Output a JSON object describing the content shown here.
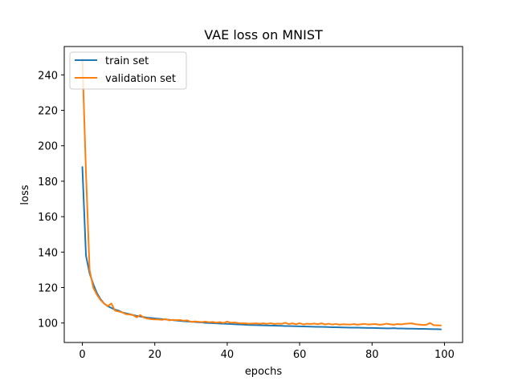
{
  "chart_data": {
    "type": "line",
    "title": "VAE loss on MNIST",
    "xlabel": "epochs",
    "ylabel": "loss",
    "xlim": [
      -5,
      105
    ],
    "ylim": [
      89,
      256
    ],
    "xticks": [
      0,
      20,
      40,
      60,
      80,
      100
    ],
    "yticks": [
      100,
      120,
      140,
      160,
      180,
      200,
      220,
      240
    ],
    "grid": false,
    "legend_position": "top-left",
    "series": [
      {
        "name": "train set",
        "color": "#1f77b4",
        "x": [
          0,
          1,
          2,
          3,
          4,
          5,
          6,
          7,
          8,
          9,
          10,
          11,
          12,
          13,
          14,
          15,
          16,
          17,
          18,
          19,
          20,
          21,
          22,
          23,
          24,
          25,
          26,
          27,
          28,
          29,
          30,
          31,
          32,
          33,
          34,
          35,
          36,
          37,
          38,
          39,
          40,
          41,
          42,
          43,
          44,
          45,
          46,
          47,
          48,
          49,
          50,
          51,
          52,
          53,
          54,
          55,
          56,
          57,
          58,
          59,
          60,
          61,
          62,
          63,
          64,
          65,
          66,
          67,
          68,
          69,
          70,
          71,
          72,
          73,
          74,
          75,
          76,
          77,
          78,
          79,
          80,
          81,
          82,
          83,
          84,
          85,
          86,
          87,
          88,
          89,
          90,
          91,
          92,
          93,
          94,
          95,
          96,
          97,
          98,
          99
        ],
        "values": [
          188,
          138,
          128,
          122,
          117,
          113.5,
          111,
          109.5,
          108.5,
          107.5,
          107,
          106,
          105.5,
          105,
          104.5,
          104,
          103.7,
          103.3,
          103,
          102.8,
          102.6,
          102.4,
          102.2,
          102,
          101.8,
          101.6,
          101.4,
          101.2,
          101,
          100.9,
          100.7,
          100.6,
          100.4,
          100.3,
          100.1,
          100,
          99.9,
          99.8,
          99.7,
          99.6,
          99.5,
          99.4,
          99.3,
          99.2,
          99.1,
          99,
          98.9,
          98.85,
          98.8,
          98.75,
          98.7,
          98.6,
          98.55,
          98.5,
          98.45,
          98.4,
          98.3,
          98.25,
          98.2,
          98.15,
          98.1,
          98.05,
          98,
          97.95,
          97.9,
          97.85,
          97.8,
          97.75,
          97.7,
          97.6,
          97.6,
          97.55,
          97.5,
          97.45,
          97.4,
          97.4,
          97.35,
          97.3,
          97.25,
          97.2,
          97.2,
          97.15,
          97.1,
          97.05,
          97,
          97,
          97.1,
          96.9,
          96.9,
          96.85,
          96.8,
          96.8,
          96.75,
          96.7,
          96.7,
          96.65,
          96.6,
          96.55,
          96.5,
          96.4
        ]
      },
      {
        "name": "validation set",
        "color": "#ff7f0e",
        "x": [
          0,
          1,
          2,
          3,
          4,
          5,
          6,
          7,
          8,
          9,
          10,
          11,
          12,
          13,
          14,
          15,
          16,
          17,
          18,
          19,
          20,
          21,
          22,
          23,
          24,
          25,
          26,
          27,
          28,
          29,
          30,
          31,
          32,
          33,
          34,
          35,
          36,
          37,
          38,
          39,
          40,
          41,
          42,
          43,
          44,
          45,
          46,
          47,
          48,
          49,
          50,
          51,
          52,
          53,
          54,
          55,
          56,
          57,
          58,
          59,
          60,
          61,
          62,
          63,
          64,
          65,
          66,
          67,
          68,
          69,
          70,
          71,
          72,
          73,
          74,
          75,
          76,
          77,
          78,
          79,
          80,
          81,
          82,
          83,
          84,
          85,
          86,
          87,
          88,
          89,
          90,
          91,
          92,
          93,
          94,
          95,
          96,
          97,
          98,
          99
        ],
        "values": [
          249,
          185,
          130,
          120,
          116,
          113,
          111,
          109.5,
          111,
          107,
          106.5,
          106,
          105,
          104.8,
          104.5,
          103.2,
          104.5,
          103,
          102.5,
          102.2,
          102,
          102,
          101.8,
          102.2,
          101.5,
          101.8,
          101.6,
          101.7,
          101.3,
          101.5,
          100.6,
          100.9,
          100.7,
          100.5,
          100.8,
          100.4,
          100.6,
          100.2,
          100.5,
          100,
          100.8,
          100.1,
          100.3,
          100,
          99.8,
          99.8,
          99.6,
          99.7,
          99.8,
          99.6,
          99.8,
          99.5,
          99.9,
          99.4,
          99.7,
          99.5,
          100.1,
          99.4,
          99.8,
          99.3,
          99.9,
          99.2,
          99.6,
          99.4,
          99.7,
          99.3,
          99.8,
          99.2,
          99.6,
          99.1,
          99.5,
          99,
          99.3,
          99.2,
          99.1,
          99.4,
          99,
          99.3,
          99.5,
          99.1,
          99.3,
          99.4,
          99,
          99.2,
          99.6,
          99.3,
          99,
          99.4,
          99.2,
          99.5,
          99.7,
          99.8,
          99.3,
          99.1,
          98.9,
          99,
          100,
          98.8,
          98.7,
          98.6
        ]
      }
    ]
  }
}
